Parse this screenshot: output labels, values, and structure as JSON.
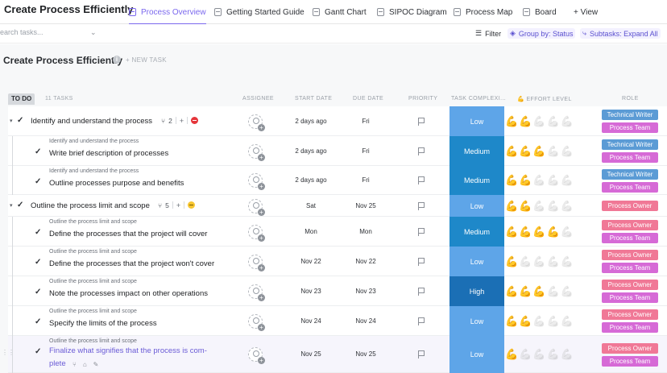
{
  "app": {
    "title": "Create Process Efficiently"
  },
  "tabs": [
    {
      "label": "Process Overview",
      "icon": "list-icon",
      "active": true
    },
    {
      "label": "Getting Started Guide",
      "icon": "doc-icon",
      "active": false
    },
    {
      "label": "Gantt Chart",
      "icon": "gantt-icon",
      "active": false
    },
    {
      "label": "SIPOC Diagram",
      "icon": "whiteboard-icon",
      "active": false
    },
    {
      "label": "Process Map",
      "icon": "whiteboard-icon",
      "active": false
    },
    {
      "label": "Board",
      "icon": "board-icon",
      "active": false
    },
    {
      "label": "+ View",
      "icon": "plus-icon",
      "active": false
    }
  ],
  "toolbar": {
    "search_placeholder": "Search tasks...",
    "filter_label": "Filter",
    "group_by_label": "Group by: Status",
    "subtasks_label": "Subtasks: Expand All"
  },
  "page": {
    "title": "Create Process Efficiently",
    "new_task_label": "+ NEW TASK"
  },
  "group": {
    "status": "TO DO",
    "count_label": "11 TASKS"
  },
  "columns": {
    "assignee": "ASSIGNEE",
    "start_date": "START DATE",
    "due_date": "DUE DATE",
    "priority": "PRIORITY",
    "complexity": "TASK COMPLEXI...",
    "effort": "💪 EFFORT LEVEL",
    "role": "ROLE"
  },
  "colors": {
    "accent": "#7b68ee",
    "low": "#5ea5e8",
    "medium": "#1e88c9",
    "high": "#1b6fb5",
    "role_writer": "#5b9bd5",
    "role_team": "#d66ad6",
    "role_owner": "#f07896"
  },
  "rows": [
    {
      "type": "parent",
      "name": "Identify and understand the process",
      "subtasks": "2",
      "status_icon": "stop-icon",
      "start": "2 days ago",
      "due": "Fri",
      "complexity": "Low",
      "effort": 2,
      "roles": [
        "Technical Writer",
        "Process Team"
      ]
    },
    {
      "type": "sub",
      "parent": "Identify and understand the process",
      "name": "Write brief description of processes",
      "start": "2 days ago",
      "due": "Fri",
      "complexity": "Medium",
      "effort": 3,
      "roles": [
        "Technical Writer",
        "Process Team"
      ]
    },
    {
      "type": "sub",
      "parent": "Identify and understand the process",
      "name": "Outline processes purpose and benefits",
      "start": "2 days ago",
      "due": "Fri",
      "complexity": "Medium",
      "effort": 2,
      "roles": [
        "Technical Writer",
        "Process Team"
      ]
    },
    {
      "type": "parent",
      "name": "Outline the process limit and scope",
      "subtasks": "5",
      "status_icon": "pause-icon",
      "start": "Sat",
      "due": "Nov 25",
      "complexity": "Low",
      "effort": 2,
      "roles": [
        "Process Owner"
      ]
    },
    {
      "type": "sub",
      "parent": "Outline the process limit and scope",
      "name": "Define the processes that the project will cover",
      "start": "Mon",
      "due": "Mon",
      "complexity": "Medium",
      "effort": 4,
      "roles": [
        "Process Owner",
        "Process Team"
      ]
    },
    {
      "type": "sub",
      "parent": "Outline the process limit and scope",
      "name": "Define the processes that the project won't cover",
      "start": "Nov 22",
      "due": "Nov 22",
      "complexity": "Low",
      "effort": 1,
      "roles": [
        "Process Owner",
        "Process Team"
      ]
    },
    {
      "type": "sub",
      "parent": "Outline the process limit and scope",
      "name": "Note the processes impact on other operations",
      "start": "Nov 23",
      "due": "Nov 23",
      "complexity": "High",
      "effort": 3,
      "roles": [
        "Process Owner",
        "Process Team"
      ]
    },
    {
      "type": "sub",
      "parent": "Outline the process limit and scope",
      "name": "Specify the limits of the process",
      "start": "Nov 24",
      "due": "Nov 24",
      "complexity": "Low",
      "effort": 2,
      "roles": [
        "Process Owner",
        "Process Team"
      ]
    },
    {
      "type": "sub",
      "parent": "Outline the process limit and scope",
      "name": "Finalize what signifies that the process is com-plete",
      "start": "Nov 25",
      "due": "Nov 25",
      "complexity": "Low",
      "effort": 1,
      "roles": [
        "Process Owner",
        "Process Team"
      ]
    }
  ]
}
